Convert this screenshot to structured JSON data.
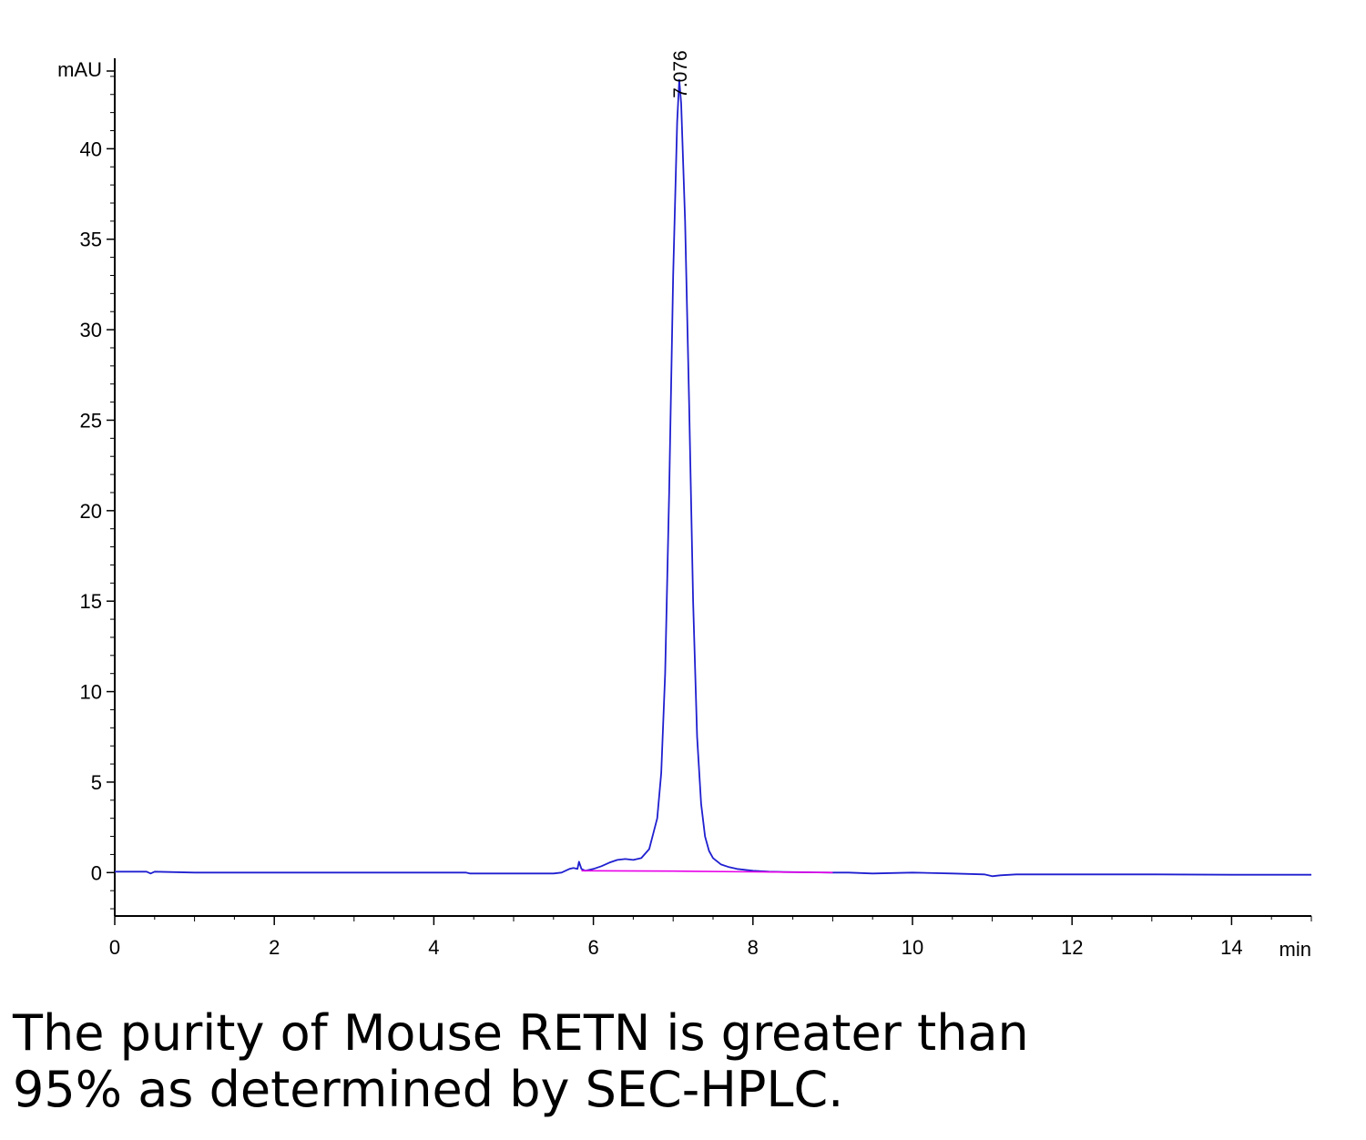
{
  "chart_data": {
    "type": "line",
    "xlabel": "min",
    "ylabel": "mAU",
    "xlim": [
      0,
      15
    ],
    "ylim": [
      -2.4,
      45
    ],
    "x_ticks": [
      0,
      2,
      4,
      6,
      8,
      10,
      12,
      14
    ],
    "y_ticks": [
      0,
      5,
      10,
      15,
      20,
      25,
      30,
      35,
      40
    ],
    "grid": false,
    "peak_label": "7.076",
    "series": [
      {
        "color": "#1f1fd0",
        "x": [
          0,
          0.4,
          0.45,
          0.5,
          1.0,
          2.0,
          3.0,
          4.0,
          4.4,
          4.45,
          5.0,
          5.5,
          5.6,
          5.7,
          5.75,
          5.8,
          5.82,
          5.85,
          5.9,
          6.0,
          6.1,
          6.2,
          6.3,
          6.4,
          6.5,
          6.6,
          6.7,
          6.8,
          6.85,
          6.9,
          6.95,
          7.0,
          7.05,
          7.076,
          7.1,
          7.15,
          7.2,
          7.25,
          7.3,
          7.35,
          7.4,
          7.45,
          7.5,
          7.6,
          7.7,
          7.8,
          7.9,
          8.0,
          8.2,
          8.4,
          8.6,
          8.8,
          9.0,
          9.1,
          9.2,
          9.5,
          10.0,
          10.5,
          10.9,
          11.0,
          11.1,
          11.3,
          11.5,
          12.0,
          13.0,
          14.0,
          15.0
        ],
        "y": [
          0.05,
          0.05,
          -0.05,
          0.05,
          0.0,
          0.0,
          0.0,
          0.0,
          0.0,
          -0.05,
          -0.05,
          -0.05,
          0.0,
          0.2,
          0.25,
          0.2,
          0.6,
          0.2,
          0.1,
          0.2,
          0.35,
          0.55,
          0.7,
          0.75,
          0.7,
          0.8,
          1.3,
          3.0,
          5.5,
          11.0,
          21.0,
          33.0,
          41.5,
          43.8,
          42.5,
          36.0,
          26.0,
          15.0,
          7.5,
          3.8,
          2.0,
          1.2,
          0.8,
          0.45,
          0.3,
          0.2,
          0.15,
          0.1,
          0.05,
          0.03,
          0.02,
          0.01,
          0.0,
          0.0,
          0.0,
          -0.05,
          0.0,
          -0.05,
          -0.1,
          -0.2,
          -0.15,
          -0.1,
          -0.1,
          -0.1,
          -0.1,
          -0.12,
          -0.12
        ]
      },
      {
        "color": "#e800e8",
        "x": [
          5.85,
          7.0,
          8.0,
          9.0
        ],
        "y": [
          0.1,
          0.08,
          0.04,
          0.0
        ]
      }
    ]
  },
  "caption": {
    "line1": "The purity of Mouse RETN is greater than",
    "line2": "95% as determined by SEC-HPLC."
  }
}
